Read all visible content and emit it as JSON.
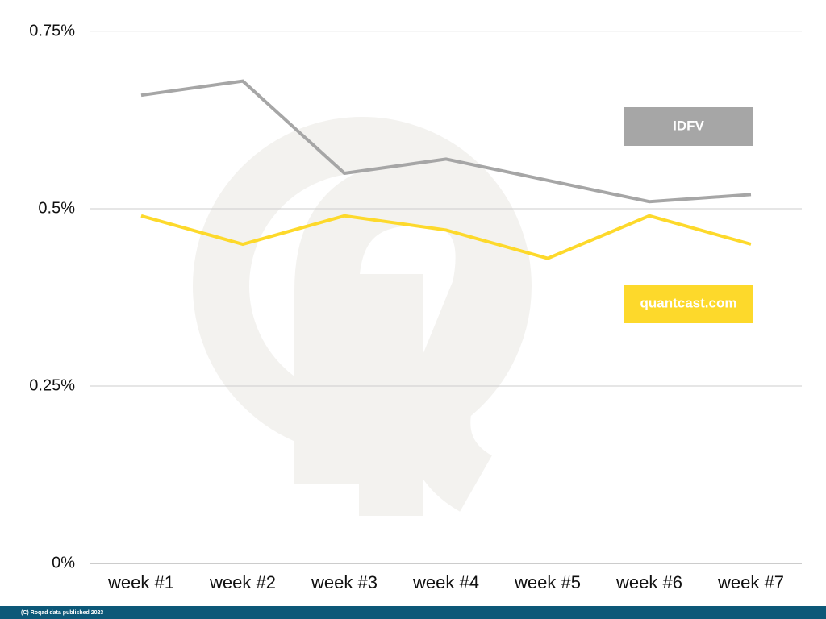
{
  "chart_data": {
    "type": "line",
    "categories": [
      "week #1",
      "week #2",
      "week #3",
      "week #4",
      "week #5",
      "week #6",
      "week #7"
    ],
    "series": [
      {
        "name": "IDFV",
        "color": "#a6a6a6",
        "values": [
          0.66,
          0.68,
          0.55,
          0.57,
          0.54,
          0.51,
          0.52
        ]
      },
      {
        "name": "quantcast.com",
        "color": "#fdd92b",
        "values": [
          0.49,
          0.45,
          0.49,
          0.47,
          0.43,
          0.49,
          0.45
        ]
      }
    ],
    "ylim": [
      0,
      0.75
    ],
    "yticks": [
      {
        "value": 0,
        "label": "0%"
      },
      {
        "value": 0.25,
        "label": "0.25%"
      },
      {
        "value": 0.5,
        "label": "0.5%"
      },
      {
        "value": 0.75,
        "label": "0.75%"
      }
    ],
    "grid": true
  },
  "footer": "(C) Roqad data published 2023"
}
